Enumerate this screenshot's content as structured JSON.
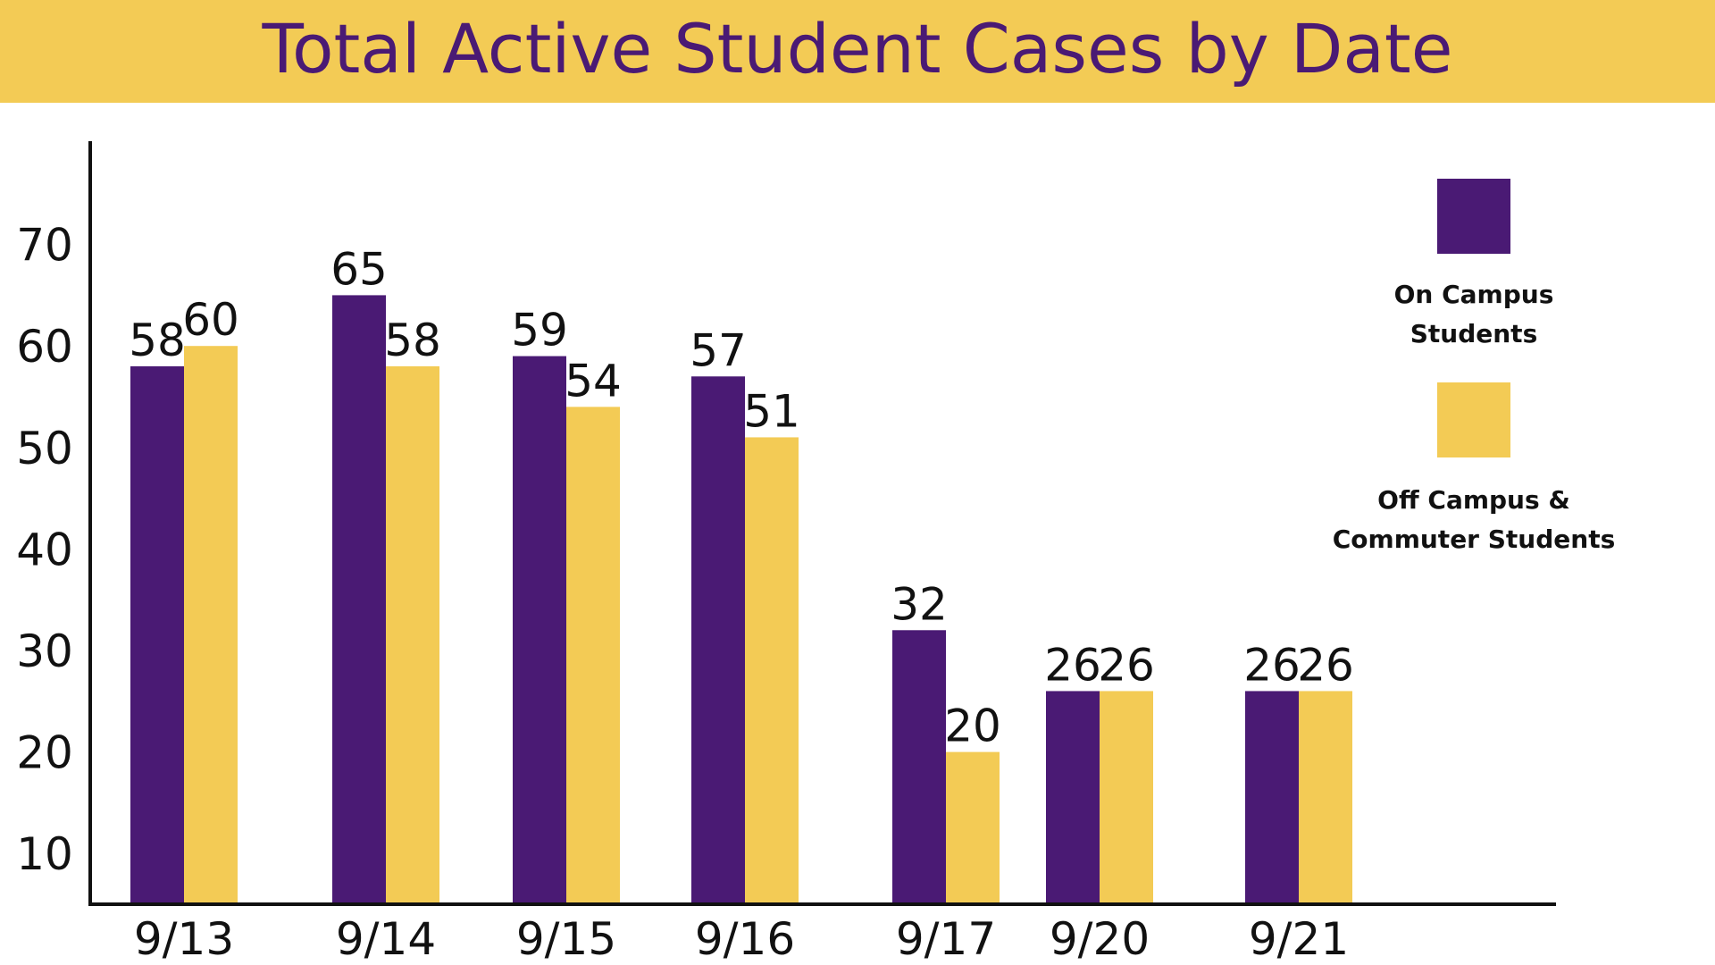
{
  "chart_data": {
    "type": "bar",
    "title": "Total Active Student Cases by Date",
    "categories": [
      "9/13",
      "9/14",
      "9/15",
      "9/16",
      "9/17",
      "9/20",
      "9/21"
    ],
    "series": [
      {
        "name": "On Campus Students",
        "values": [
          58,
          65,
          59,
          57,
          32,
          26,
          26
        ],
        "color": "#4a1a74"
      },
      {
        "name": "Off Campus & Commuter Students",
        "values": [
          60,
          58,
          54,
          51,
          20,
          26,
          26
        ],
        "color": "#f3cb55"
      }
    ],
    "y_ticks": [
      10,
      20,
      30,
      40,
      50,
      60,
      70
    ],
    "ylim": [
      5,
      80
    ],
    "legend_position": "right",
    "grid": false
  },
  "legend": {
    "on_campus_label": "On Campus\nStudents",
    "off_campus_label": "Off Campus &\nCommuter Students"
  },
  "colors": {
    "title_band": "#f3cb55",
    "title_text": "#4a1a74",
    "on_campus": "#4a1a74",
    "off_campus": "#f3cb55",
    "axis": "#111111"
  }
}
